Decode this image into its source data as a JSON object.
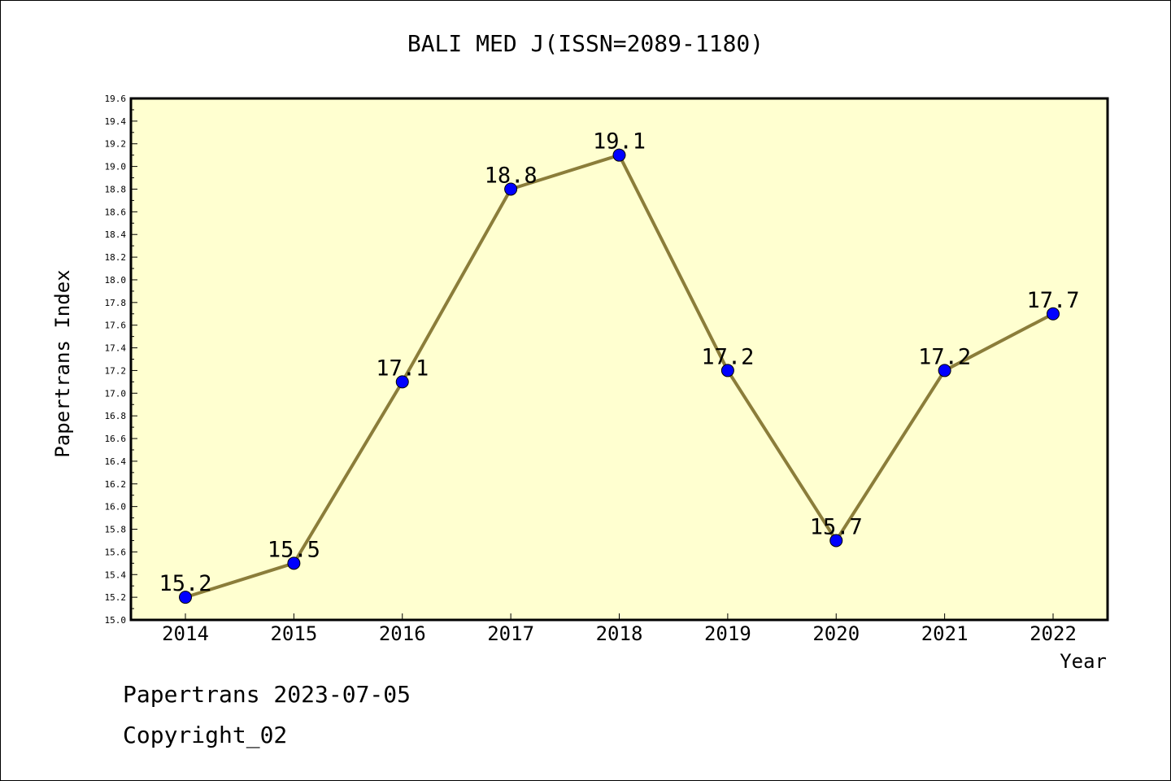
{
  "chart_data": {
    "type": "line",
    "title": "BALI MED J(ISSN=2089-1180)",
    "xlabel": "Year",
    "ylabel": "Papertrans Index",
    "categories": [
      "2014",
      "2015",
      "2016",
      "2017",
      "2018",
      "2019",
      "2020",
      "2021",
      "2022"
    ],
    "values": [
      15.2,
      15.5,
      17.1,
      18.8,
      19.1,
      17.2,
      15.7,
      17.2,
      17.7
    ],
    "data_labels": [
      "15.2",
      "15.5",
      "17.1",
      "18.8",
      "19.1",
      "17.2",
      "15.7",
      "17.2",
      "17.7"
    ],
    "ylim": [
      15.0,
      19.6
    ],
    "yticks": [
      "15.0",
      "15.2",
      "15.4",
      "15.6",
      "15.8",
      "16.0",
      "16.2",
      "16.4",
      "16.6",
      "16.8",
      "17.0",
      "17.2",
      "17.4",
      "17.6",
      "17.8",
      "18.0",
      "18.2",
      "18.4",
      "18.6",
      "18.8",
      "19.0",
      "19.2",
      "19.4",
      "19.6"
    ],
    "grid": false,
    "colors": {
      "plot_background": "#ffffd0",
      "line": "#8b7d3a",
      "marker": "#0000ff"
    }
  },
  "footer": {
    "line1": "Papertrans 2023-07-05",
    "line2": "Copyright_02"
  }
}
